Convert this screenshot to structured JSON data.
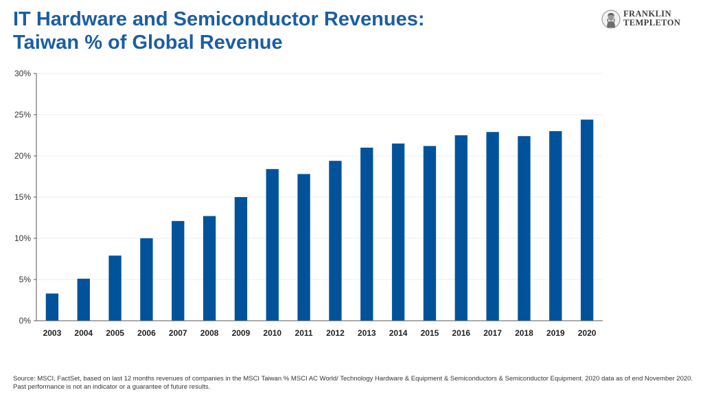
{
  "header": {
    "title_line1": "IT Hardware and Semiconductor Revenues:",
    "title_line2": "Taiwan % of Global Revenue"
  },
  "logo": {
    "line1": "FRANKLIN",
    "line2": "TEMPLETON",
    "icon": "franklin-portrait-icon"
  },
  "chart_data": {
    "type": "bar",
    "title": "IT Hardware and Semiconductor Revenues: Taiwan % of Global Revenue",
    "categories": [
      "2003",
      "2004",
      "2005",
      "2006",
      "2007",
      "2008",
      "2009",
      "2010",
      "2011",
      "2012",
      "2013",
      "2014",
      "2015",
      "2016",
      "2017",
      "2018",
      "2019",
      "2020"
    ],
    "values": [
      3.3,
      5.1,
      7.9,
      10.0,
      12.1,
      12.7,
      15.0,
      18.4,
      17.8,
      19.4,
      21.0,
      21.5,
      21.2,
      22.5,
      22.9,
      22.4,
      23.0,
      24.4
    ],
    "ylim": [
      0,
      30
    ],
    "yticks": [
      0,
      5,
      10,
      15,
      20,
      25,
      30
    ],
    "ytick_labels": [
      "0%",
      "5%",
      "10%",
      "15%",
      "20%",
      "25%",
      "30%"
    ],
    "xlabel": "",
    "ylabel": "",
    "grid": true,
    "bar_color": "#00539b",
    "grid_color": "#ececec",
    "axis_color": "#555555"
  },
  "footer": {
    "source": "Source: MSCI, FactSet, based on last 12 months revenues of companies in the MSCI Taiwan % MSCI AC World/ Technology Hardware & Equipment & Semiconductors & Semiconductor Equipment. 2020 data as of end November 2020.",
    "disclaimer": "Past performance is not an indicator or a guarantee of future results."
  }
}
